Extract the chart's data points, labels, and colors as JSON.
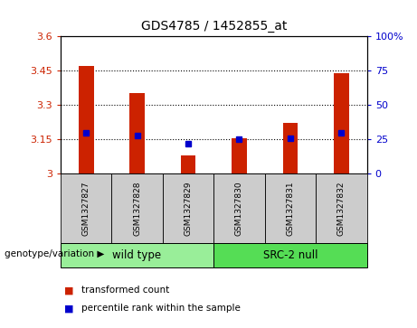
{
  "title": "GDS4785 / 1452855_at",
  "samples": [
    "GSM1327827",
    "GSM1327828",
    "GSM1327829",
    "GSM1327830",
    "GSM1327831",
    "GSM1327832"
  ],
  "red_values": [
    3.47,
    3.35,
    3.08,
    3.155,
    3.22,
    3.44
  ],
  "blue_values": [
    30,
    28,
    22,
    25,
    26,
    30
  ],
  "ylim_left": [
    3.0,
    3.6
  ],
  "ylim_right": [
    0,
    100
  ],
  "yticks_left": [
    3.0,
    3.15,
    3.3,
    3.45,
    3.6
  ],
  "ytick_labels_left": [
    "3",
    "3.15",
    "3.3",
    "3.45",
    "3.6"
  ],
  "yticks_right": [
    0,
    25,
    50,
    75,
    100
  ],
  "ytick_labels_right": [
    "0",
    "25",
    "50",
    "75",
    "100%"
  ],
  "group1_label": "wild type",
  "group2_label": "SRC-2 null",
  "group1_indices": [
    0,
    1,
    2
  ],
  "group2_indices": [
    3,
    4,
    5
  ],
  "legend_red": "transformed count",
  "legend_blue": "percentile rank within the sample",
  "genotype_label": "genotype/variation",
  "bar_color": "#cc2200",
  "dot_color": "#0000cc",
  "group1_color": "#99ee99",
  "group2_color": "#55dd55",
  "tick_bg_color": "#cccccc",
  "background_color": "#ffffff",
  "bar_width": 0.3
}
